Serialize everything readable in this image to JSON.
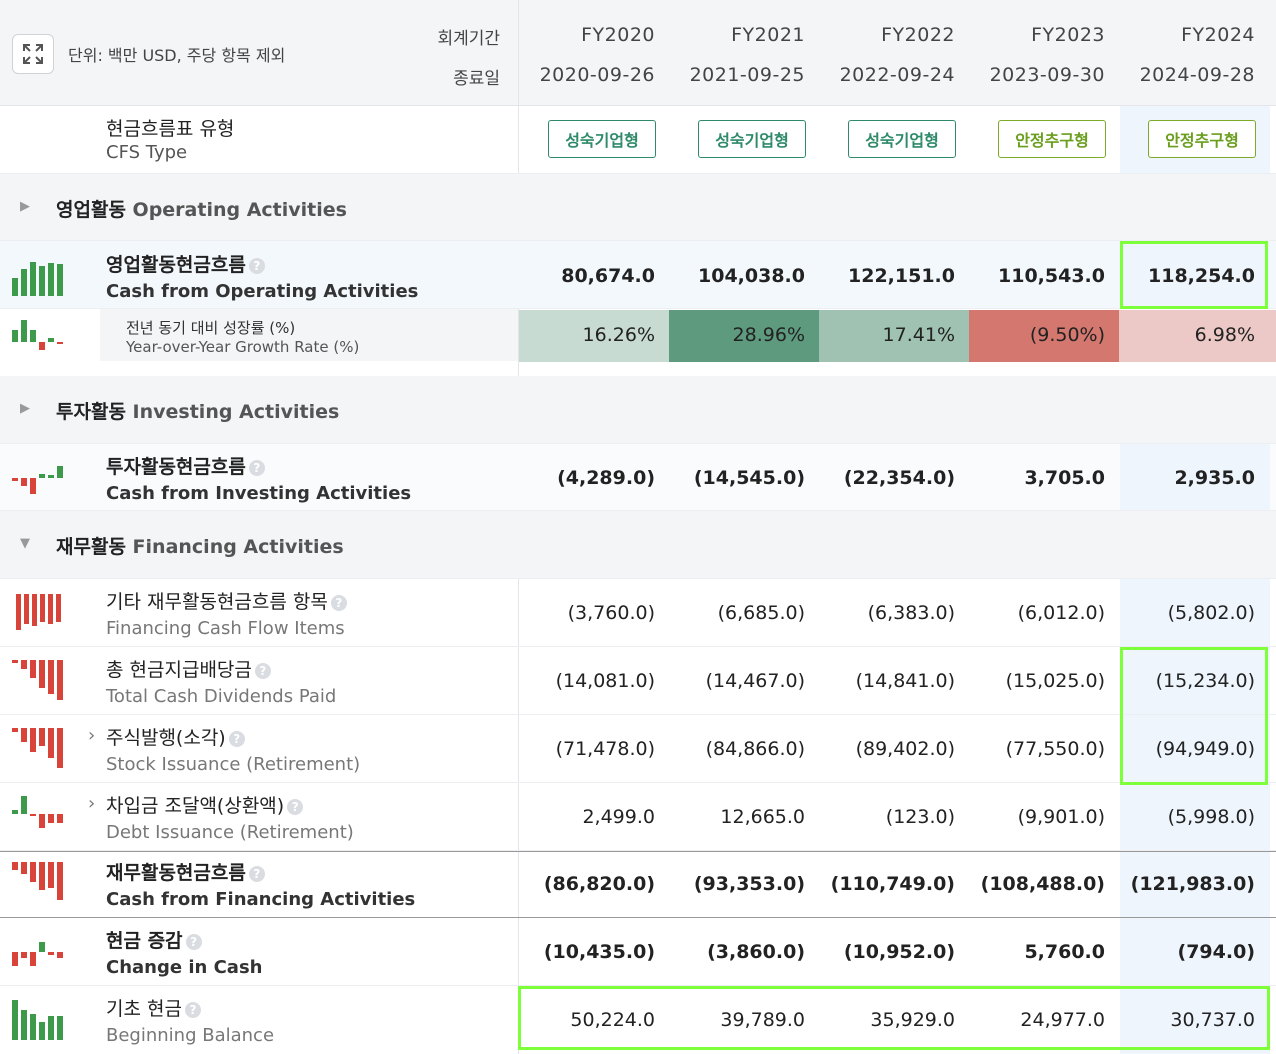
{
  "header": {
    "unit_label": "단위: 백만 USD, 주당 항목 제외",
    "period_label": "회계기간",
    "end_date_label": "종료일",
    "fiscal_years": [
      "FY2020",
      "FY2021",
      "FY2022",
      "FY2023",
      "FY2024"
    ],
    "end_dates": [
      "2020-09-26",
      "2021-09-25",
      "2022-09-24",
      "2023-09-30",
      "2024-09-28"
    ]
  },
  "cfs_type": {
    "label_ko": "현금흐름표 유형",
    "label_en": "CFS Type",
    "values": [
      "성숙기업형",
      "성숙기업형",
      "성숙기업형",
      "안정추구형",
      "안정추구형"
    ]
  },
  "sections": {
    "operating": {
      "ko": "영업활동",
      "en": "Operating Activities"
    },
    "investing": {
      "ko": "투자활동",
      "en": "Investing Activities"
    },
    "financing": {
      "ko": "재무활동",
      "en": "Financing Activities"
    }
  },
  "rows": {
    "cfo": {
      "ko": "영업활동현금흐름",
      "en": "Cash from Operating Activities",
      "values": [
        "80,674.0",
        "104,038.0",
        "122,151.0",
        "110,543.0",
        "118,254.0"
      ]
    },
    "yoy": {
      "ko": "전년 동기 대비 성장률 (%)",
      "en": "Year-over-Year Growth Rate (%)",
      "values": [
        "16.26%",
        "28.96%",
        "17.41%",
        "(9.50%)",
        "6.98%"
      ],
      "colors": [
        "#c8dbd3",
        "#5e9a7e",
        "#9fc2b2",
        "#d3776f",
        "#ecc9c6"
      ]
    },
    "cfi": {
      "ko": "투자활동현금흐름",
      "en": "Cash from Investing Activities",
      "values": [
        "(4,289.0)",
        "(14,545.0)",
        "(22,354.0)",
        "3,705.0",
        "2,935.0"
      ]
    },
    "other_fin": {
      "ko": "기타 재무활동현금흐름 항목",
      "en": "Financing Cash Flow Items",
      "values": [
        "(3,760.0)",
        "(6,685.0)",
        "(6,383.0)",
        "(6,012.0)",
        "(5,802.0)"
      ]
    },
    "dividends": {
      "ko": "총 현금지급배당금",
      "en": "Total Cash Dividends Paid",
      "values": [
        "(14,081.0)",
        "(14,467.0)",
        "(14,841.0)",
        "(15,025.0)",
        "(15,234.0)"
      ]
    },
    "stock": {
      "ko": "주식발행(소각)",
      "en": "Stock Issuance (Retirement)",
      "values": [
        "(71,478.0)",
        "(84,866.0)",
        "(89,402.0)",
        "(77,550.0)",
        "(94,949.0)"
      ]
    },
    "debt": {
      "ko": "차입금 조달액(상환액)",
      "en": "Debt Issuance (Retirement)",
      "values": [
        "2,499.0",
        "12,665.0",
        "(123.0)",
        "(9,901.0)",
        "(5,998.0)"
      ]
    },
    "cff": {
      "ko": "재무활동현금흐름",
      "en": "Cash from Financing Activities",
      "values": [
        "(86,820.0)",
        "(93,353.0)",
        "(110,749.0)",
        "(108,488.0)",
        "(121,983.0)"
      ]
    },
    "change": {
      "ko": "현금 증감",
      "en": "Change in Cash",
      "values": [
        "(10,435.0)",
        "(3,860.0)",
        "(10,952.0)",
        "5,760.0",
        "(794.0)"
      ]
    },
    "begin": {
      "ko": "기초 현금",
      "en": "Beginning Balance",
      "values": [
        "50,224.0",
        "39,789.0",
        "35,929.0",
        "24,977.0",
        "30,737.0"
      ]
    }
  },
  "icons": {
    "expand": "expand-icon",
    "help": "?",
    "expand_row": "›",
    "collapsed": "▶",
    "expanded": "▼"
  }
}
